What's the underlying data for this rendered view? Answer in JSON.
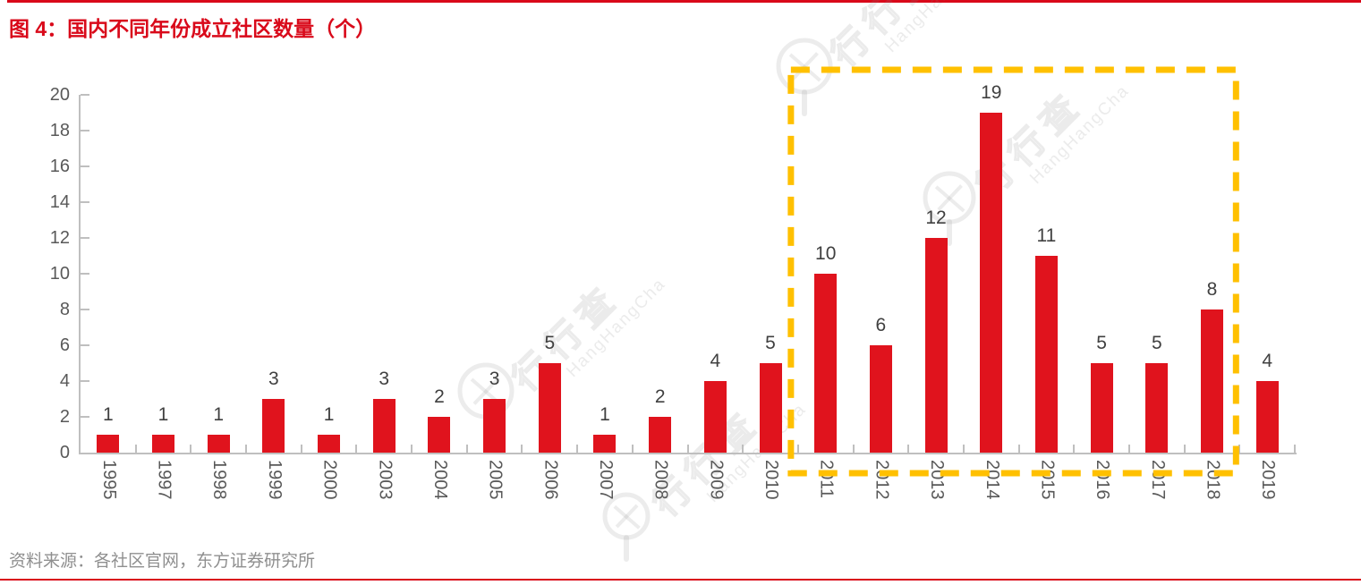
{
  "page": {
    "title": "图 4：国内不同年份成立社区数量（个）",
    "source": "资料来源：各社区官网，东方证券研究所",
    "accent_red": "#d9091a",
    "bar_red": "#e0131d",
    "highlight_yellow": "#ffc000",
    "axis_gray": "#bfbfbf",
    "axis_text_gray": "#595959",
    "value_text_gray": "#404040"
  },
  "watermark": {
    "brand_cn": "行行查",
    "brand_en": "HangHangCha"
  },
  "chart_data": {
    "type": "bar",
    "title": "图 4：国内不同年份成立社区数量（个）",
    "xlabel": "",
    "ylabel": "",
    "categories": [
      "1995",
      "1997",
      "1998",
      "1999",
      "2000",
      "2003",
      "2004",
      "2005",
      "2006",
      "2007",
      "2008",
      "2009",
      "2010",
      "2011",
      "2012",
      "2013",
      "2014",
      "2015",
      "2016",
      "2017",
      "2018",
      "2019"
    ],
    "values": [
      1,
      1,
      1,
      3,
      1,
      3,
      2,
      3,
      5,
      1,
      2,
      4,
      5,
      10,
      6,
      12,
      19,
      11,
      5,
      5,
      8,
      4
    ],
    "ylim": [
      0,
      20
    ],
    "yticks": [
      0,
      2,
      4,
      6,
      8,
      10,
      12,
      14,
      16,
      18,
      20
    ],
    "grid": false,
    "legend": "none",
    "data_labels": true,
    "bar_color": "#e0131d",
    "highlight_box": {
      "from": "2011",
      "to": "2018",
      "color": "#ffc000",
      "style": "dashed"
    }
  }
}
